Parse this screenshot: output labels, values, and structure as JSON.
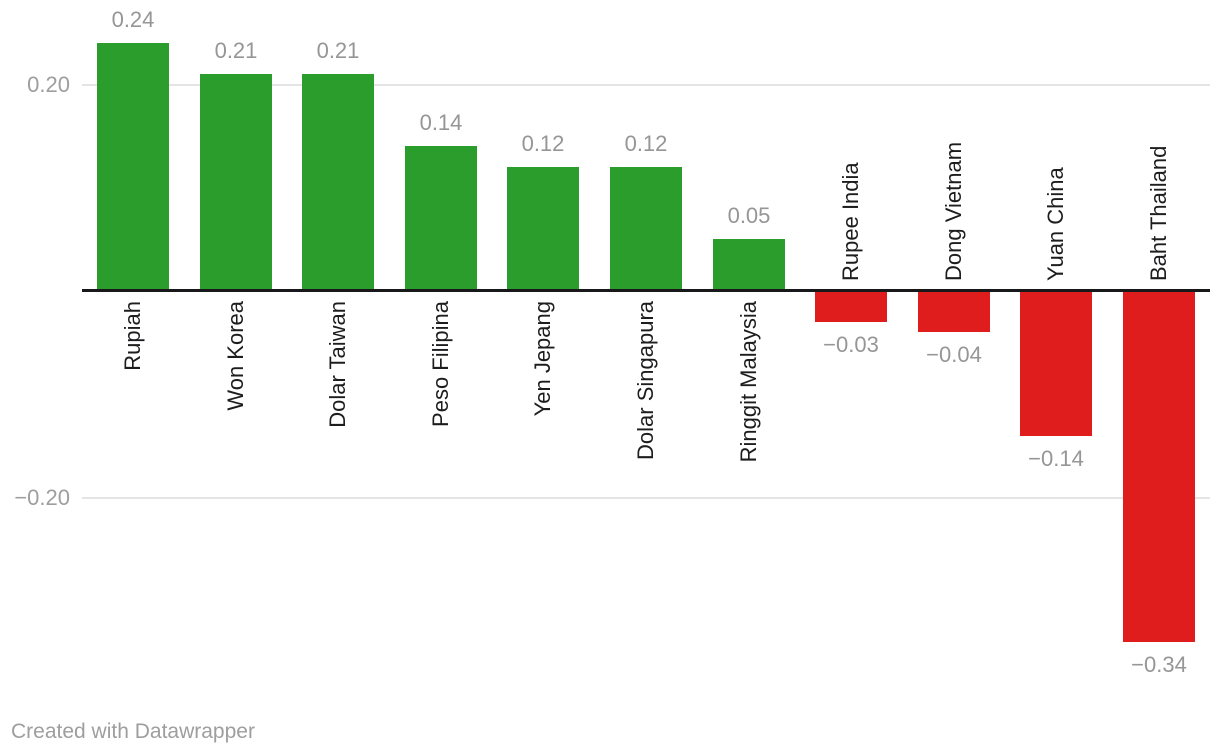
{
  "chart_data": {
    "type": "bar",
    "title": "",
    "xlabel": "",
    "ylabel": "",
    "categories": [
      "Rupiah",
      "Won Korea",
      "Dolar Taiwan",
      "Peso Filipina",
      "Yen Jepang",
      "Dolar Singapura",
      "Ringgit Malaysia",
      "Rupee India",
      "Dong Vietnam",
      "Yuan China",
      "Baht Thailand"
    ],
    "values": [
      0.24,
      0.21,
      0.21,
      0.14,
      0.12,
      0.12,
      0.05,
      -0.03,
      -0.04,
      -0.14,
      -0.34
    ],
    "value_labels": [
      "0.24",
      "0.21",
      "0.21",
      "0.14",
      "0.12",
      "0.12",
      "0.05",
      "−0.03",
      "−0.04",
      "−0.14",
      "−0.34"
    ],
    "ylim": [
      -0.38,
      0.28
    ],
    "grid": "horizontal",
    "legend_position": "none",
    "axis_ticks": [
      {
        "value": 0.2,
        "label": "0.20"
      },
      {
        "value": -0.2,
        "label": "−0.20"
      }
    ]
  },
  "colors": {
    "positive_bar": "#2a9d2d",
    "negative_bar": "#e01d1d",
    "value_label": "#969696",
    "tick_label": "#9e9e9e",
    "category_label": "#1d1d1f",
    "gridline": "#e4e4e4",
    "baseline": "#18181a",
    "background": "#ffffff",
    "credit_text": "#9e9e9e"
  },
  "footer": {
    "credit": "Created with Datawrapper"
  }
}
